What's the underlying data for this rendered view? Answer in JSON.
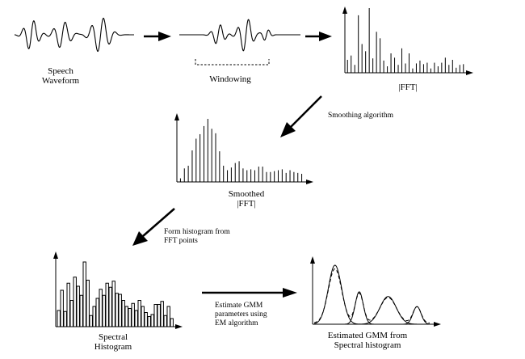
{
  "labels": {
    "speech": [
      "Speech",
      "Waveform"
    ],
    "windowing": "Windowing",
    "fft": "|FFT|",
    "smoothing": "Smoothing algorithm",
    "smoothed": [
      "Smoothed",
      "|FFT|"
    ],
    "form_histogram": [
      "Form histogram from",
      "FFT points"
    ],
    "spectral_histogram": [
      "Spectral",
      "Histogram"
    ],
    "estimate_gmm": [
      "Estimate GMM",
      "parameters using",
      "EM algorithm"
    ],
    "estimated_gmm": [
      "Estimated GMM from",
      "Spectral histogram"
    ]
  },
  "fft_bars": [
    18,
    24,
    11,
    80,
    40,
    30,
    90,
    20,
    57,
    48,
    17,
    9,
    27,
    21,
    11,
    34,
    13,
    27,
    6,
    13,
    17,
    12,
    14,
    6,
    14,
    9,
    14,
    21,
    11,
    18,
    7,
    11,
    12
  ],
  "smoothed_bars": [
    4,
    15,
    18,
    35,
    48,
    53,
    62,
    70,
    59,
    54,
    34,
    18,
    13,
    16,
    21,
    23,
    15,
    13,
    14,
    13,
    17,
    17,
    11,
    11,
    12,
    13,
    14,
    10,
    13,
    11,
    10,
    9
  ],
  "histogram_bars": [
    16,
    36,
    15,
    43,
    26,
    49,
    40,
    31,
    64,
    46,
    11,
    20,
    28,
    37,
    31,
    43,
    39,
    45,
    33,
    32,
    26,
    20,
    18,
    23,
    16,
    26,
    20,
    14,
    10,
    12,
    22,
    22,
    25,
    11,
    20,
    8
  ],
  "gmm_components": [
    {
      "mean": 0.18,
      "sd": 0.058,
      "amp": 1.0
    },
    {
      "mean": 0.39,
      "sd": 0.035,
      "amp": 0.55
    },
    {
      "mean": 0.64,
      "sd": 0.07,
      "amp": 0.47
    },
    {
      "mean": 0.89,
      "sd": 0.035,
      "amp": 0.3
    }
  ]
}
